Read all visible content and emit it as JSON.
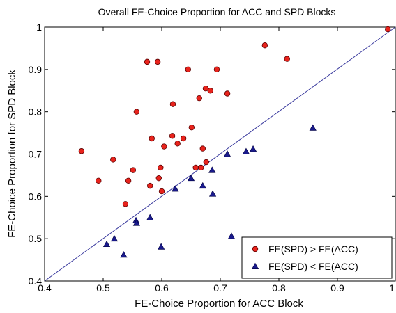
{
  "chart_data": {
    "type": "scatter",
    "title": "Overall FE-Choice Proportion for ACC and SPD Blocks",
    "xlabel": "FE-Choice Proportion for ACC Block",
    "ylabel": "FE-Choice Proportion for SPD Block",
    "xlim": [
      0.4,
      1.0
    ],
    "ylim": [
      0.4,
      1.0
    ],
    "x_ticks": [
      "0.4",
      "0.5",
      "0.6",
      "0.7",
      "0.8",
      "0.9",
      "1"
    ],
    "y_ticks": [
      "0.4",
      "0.5",
      "0.6",
      "0.7",
      "0.8",
      "0.9",
      "1"
    ],
    "grid": false,
    "legend_position": "bottom-right",
    "reference_line": {
      "from": [
        0.4,
        0.4
      ],
      "to": [
        1.0,
        1.0
      ],
      "color": "#3a3a9e"
    },
    "series": [
      {
        "name": "FE(SPD) > FE(ACC)",
        "marker": "circle",
        "color": "#e8231c",
        "points": [
          [
            0.463,
            0.707
          ],
          [
            0.492,
            0.637
          ],
          [
            0.517,
            0.687
          ],
          [
            0.538,
            0.582
          ],
          [
            0.543,
            0.637
          ],
          [
            0.551,
            0.662
          ],
          [
            0.557,
            0.8
          ],
          [
            0.575,
            0.918
          ],
          [
            0.58,
            0.625
          ],
          [
            0.583,
            0.737
          ],
          [
            0.593,
            0.918
          ],
          [
            0.595,
            0.643
          ],
          [
            0.598,
            0.668
          ],
          [
            0.6,
            0.612
          ],
          [
            0.604,
            0.718
          ],
          [
            0.618,
            0.743
          ],
          [
            0.619,
            0.818
          ],
          [
            0.627,
            0.725
          ],
          [
            0.637,
            0.737
          ],
          [
            0.645,
            0.9
          ],
          [
            0.651,
            0.763
          ],
          [
            0.658,
            0.668
          ],
          [
            0.664,
            0.832
          ],
          [
            0.667,
            0.668
          ],
          [
            0.67,
            0.713
          ],
          [
            0.675,
            0.855
          ],
          [
            0.676,
            0.681
          ],
          [
            0.683,
            0.85
          ],
          [
            0.694,
            0.9
          ],
          [
            0.712,
            0.843
          ],
          [
            0.776,
            0.957
          ],
          [
            0.814,
            0.925
          ],
          [
            0.986,
            0.995
          ]
        ]
      },
      {
        "name": "FE(SPD) < FE(ACC)",
        "marker": "triangle",
        "color": "#1a1a8c",
        "points": [
          [
            0.506,
            0.487
          ],
          [
            0.519,
            0.5
          ],
          [
            0.535,
            0.462
          ],
          [
            0.556,
            0.543
          ],
          [
            0.557,
            0.537
          ],
          [
            0.58,
            0.55
          ],
          [
            0.599,
            0.481
          ],
          [
            0.623,
            0.618
          ],
          [
            0.65,
            0.643
          ],
          [
            0.67,
            0.625
          ],
          [
            0.686,
            0.662
          ],
          [
            0.687,
            0.606
          ],
          [
            0.712,
            0.7
          ],
          [
            0.719,
            0.506
          ],
          [
            0.744,
            0.706
          ],
          [
            0.756,
            0.712
          ],
          [
            0.858,
            0.762
          ]
        ]
      }
    ]
  }
}
